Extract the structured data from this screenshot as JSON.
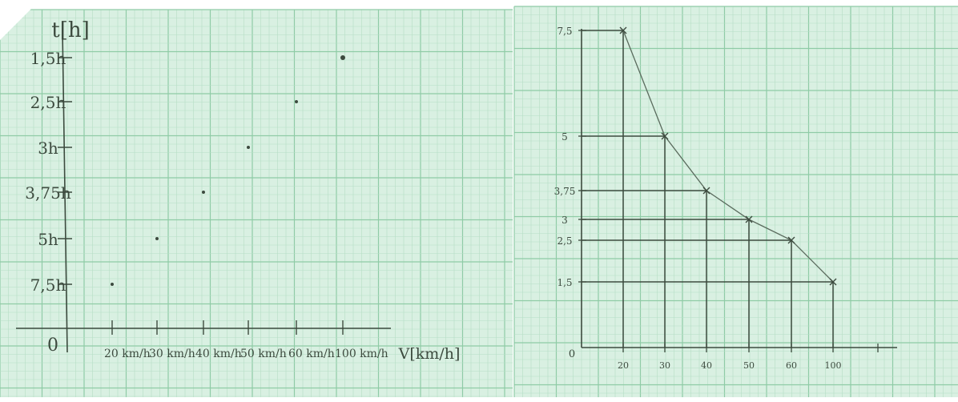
{
  "colors": {
    "paper": "#d9f0e2",
    "grid_minor": "#b6dec5",
    "grid_major": "#8fcba6",
    "pencil": "#3c4a3e"
  },
  "chart_data": [
    {
      "type": "scatter",
      "title": "",
      "ylabel": "t[h]",
      "xlabel": "V[km/h]",
      "x_ticks": [
        "20 km/h",
        "30 km/h",
        "40 km/h",
        "50 km/h",
        "60 km/h",
        "100 km/h"
      ],
      "y_ticks": [
        "7,5h",
        "5h",
        "3,75h",
        "3h",
        "2,5h",
        "1,5h"
      ],
      "origin_label": "0",
      "x": [
        20,
        30,
        40,
        50,
        60,
        100
      ],
      "y": [
        7.5,
        5,
        3.75,
        3,
        2.5,
        1.5
      ]
    },
    {
      "type": "line",
      "title": "",
      "xlabel": "",
      "ylabel": "",
      "origin_label": "0",
      "x_ticks": [
        "20",
        "30",
        "40",
        "50",
        "60",
        "100"
      ],
      "y_ticks": [
        "7,5",
        "5",
        "3,75",
        "3",
        "2,5",
        "1,5"
      ],
      "series": [
        {
          "x": [
            20,
            30,
            40,
            50,
            60,
            100
          ],
          "y": [
            7.5,
            5,
            3.75,
            3,
            2.5,
            1.5
          ]
        }
      ]
    }
  ]
}
